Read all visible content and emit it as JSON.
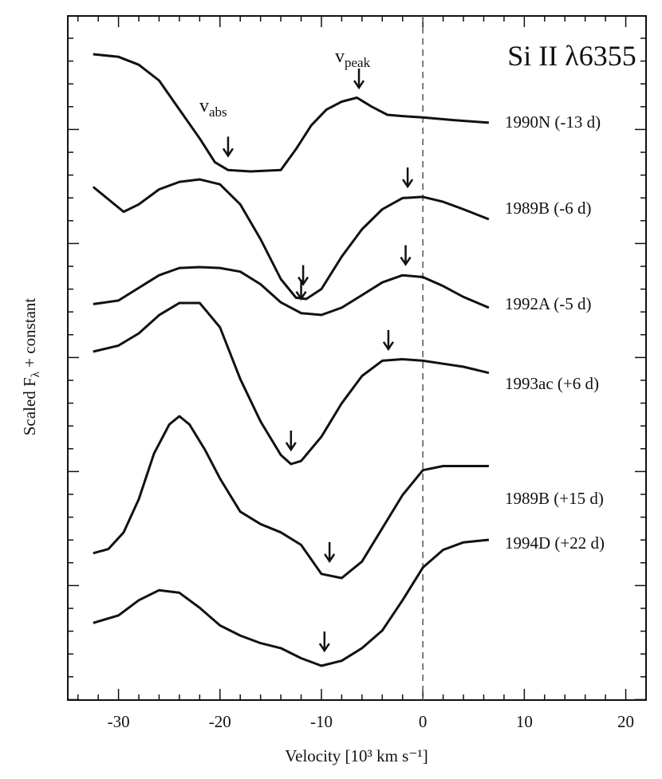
{
  "chart_data": {
    "type": "line",
    "title": "Si II λ6355",
    "xlabel": "Velocity [10³ km s⁻¹]",
    "ylabel": "Scaled F",
    "ylabel_sub": "λ",
    "ylabel_suffix": " + constant",
    "xlim": [
      -35,
      22
    ],
    "x_ticks": [
      -30,
      -20,
      -10,
      0,
      10,
      20
    ],
    "y_axis_values": "none",
    "zero_line": 0,
    "annotations": [
      {
        "label": "v",
        "sub": "peak"
      },
      {
        "label": "v",
        "sub": "abs"
      }
    ],
    "series": [
      {
        "name": "1990N (-13 d)",
        "v_abs": -19.2,
        "v_peak": -6.3,
        "x": [
          -32.5,
          -30,
          -28,
          -26,
          -24,
          -22,
          -20.5,
          -19.2,
          -17,
          -14,
          -12.5,
          -11,
          -9.5,
          -8,
          -6.5,
          -5,
          -3.5,
          -2,
          0,
          3,
          6.5
        ],
        "y": [
          5.3,
          5.2,
          4.9,
          4.3,
          3.2,
          2.1,
          1.2,
          0.9,
          0.85,
          0.9,
          1.7,
          2.6,
          3.2,
          3.5,
          3.65,
          3.3,
          3.0,
          2.95,
          2.9,
          2.8,
          2.7
        ]
      },
      {
        "name": "1989B (-6 d)",
        "v_abs": -11.8,
        "v_peak": -1.5,
        "x": [
          -32.5,
          -31,
          -29.5,
          -28,
          -26,
          -24,
          -22,
          -20,
          -18,
          -16,
          -14,
          -12.5,
          -11.5,
          -10,
          -8,
          -6,
          -4,
          -2,
          0,
          2,
          4,
          6.5
        ],
        "y": [
          5.3,
          4.8,
          4.3,
          4.6,
          5.2,
          5.5,
          5.6,
          5.4,
          4.6,
          3.2,
          1.6,
          0.85,
          0.8,
          1.2,
          2.5,
          3.6,
          4.4,
          4.85,
          4.9,
          4.7,
          4.4,
          4.0
        ]
      },
      {
        "name": "1992A (-5 d)",
        "v_abs": -12.0,
        "v_peak": -1.7,
        "x": [
          -32.5,
          -30,
          -28,
          -26,
          -24,
          -22,
          -20,
          -18,
          -16,
          -14,
          -12,
          -10,
          -8,
          -6,
          -4,
          -2,
          0,
          2,
          4,
          6.5
        ],
        "y": [
          1.0,
          1.2,
          1.9,
          2.6,
          3.0,
          3.05,
          3.0,
          2.8,
          2.1,
          1.1,
          0.5,
          0.4,
          0.8,
          1.5,
          2.2,
          2.6,
          2.5,
          2.0,
          1.4,
          0.8
        ]
      },
      {
        "name": "1993ac (+6 d)",
        "v_abs": -13.0,
        "v_peak": -3.4,
        "x": [
          -32.5,
          -30,
          -28,
          -26,
          -24,
          -22,
          -20,
          -18,
          -16,
          -14,
          -13,
          -12,
          -10,
          -8,
          -6,
          -4,
          -2,
          0,
          2,
          4,
          6.5
        ],
        "y": [
          4.7,
          4.9,
          5.3,
          5.9,
          6.3,
          6.3,
          5.5,
          3.8,
          2.4,
          1.3,
          1.0,
          1.1,
          1.9,
          3.0,
          3.9,
          4.4,
          4.45,
          4.4,
          4.3,
          4.2,
          4.0
        ]
      },
      {
        "name": "1989B (+15 d)",
        "v_abs": -9.2,
        "v_peak": null,
        "x": [
          -32.5,
          -31,
          -29.5,
          -28,
          -26.5,
          -25,
          -24,
          -23,
          -21.5,
          -20,
          -18,
          -16,
          -14,
          -12,
          -10,
          -8,
          -6,
          -4,
          -2,
          0,
          2,
          4,
          6.5
        ],
        "y": [
          1.0,
          1.1,
          1.5,
          2.3,
          3.4,
          4.1,
          4.3,
          4.1,
          3.5,
          2.8,
          2.0,
          1.7,
          1.5,
          1.2,
          0.5,
          0.4,
          0.8,
          1.6,
          2.4,
          3.0,
          3.1,
          3.1,
          3.1
        ]
      },
      {
        "name": "1994D (+22 d)",
        "v_abs": -9.7,
        "v_peak": null,
        "x": [
          -32.5,
          -30,
          -28,
          -26,
          -24,
          -22,
          -20,
          -18,
          -16,
          -14,
          -12,
          -10,
          -8,
          -6,
          -4,
          -2,
          0,
          2,
          4,
          6.5
        ],
        "y": [
          3.3,
          3.6,
          4.2,
          4.6,
          4.5,
          3.9,
          3.2,
          2.8,
          2.5,
          2.3,
          1.9,
          1.6,
          1.8,
          2.3,
          3.0,
          4.2,
          5.5,
          6.2,
          6.5,
          6.6
        ]
      }
    ]
  }
}
